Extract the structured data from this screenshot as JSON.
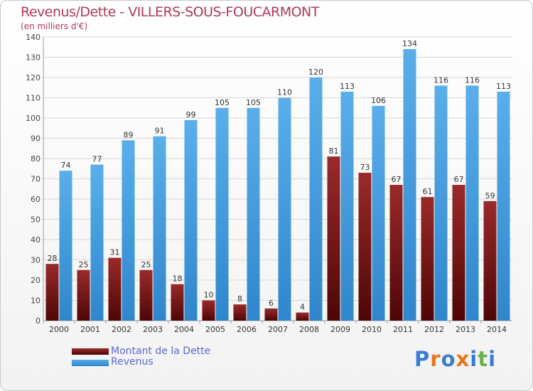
{
  "title": "Revenus/Dette - VILLERS-SOUS-FOUCARMONT",
  "subtitle": "(en milliers d'€)",
  "logo": [
    "P",
    "r",
    "o",
    "x",
    "i",
    "t",
    "i"
  ],
  "colors": {
    "debt": "#7a1616",
    "revenue": "#4f9fe0",
    "title": "#b03a5a",
    "legend_text": "#5c67d6",
    "logo": [
      "#3a7bd5",
      "#e8751a",
      "#3a7bd5",
      "#e8751a",
      "#3a7bd5",
      "#6ab04c",
      "#3a7bd5"
    ]
  },
  "chart_data": {
    "type": "bar",
    "categories": [
      "2000",
      "2001",
      "2002",
      "2003",
      "2004",
      "2005",
      "2006",
      "2007",
      "2008",
      "2009",
      "2010",
      "2011",
      "2012",
      "2013",
      "2014"
    ],
    "series": [
      {
        "name": "Montant de la Dette",
        "values": [
          28,
          25,
          31,
          25,
          18,
          10,
          8,
          6,
          4,
          81,
          73,
          67,
          61,
          67,
          59
        ]
      },
      {
        "name": "Revenus",
        "values": [
          74,
          77,
          89,
          91,
          99,
          105,
          105,
          110,
          120,
          113,
          106,
          134,
          116,
          116,
          113
        ]
      }
    ],
    "ylim": [
      0,
      140
    ],
    "yticks": [
      0,
      10,
      20,
      30,
      40,
      50,
      60,
      70,
      80,
      90,
      100,
      110,
      120,
      130,
      140
    ],
    "grid": true,
    "legend_position": "bottom-left"
  }
}
